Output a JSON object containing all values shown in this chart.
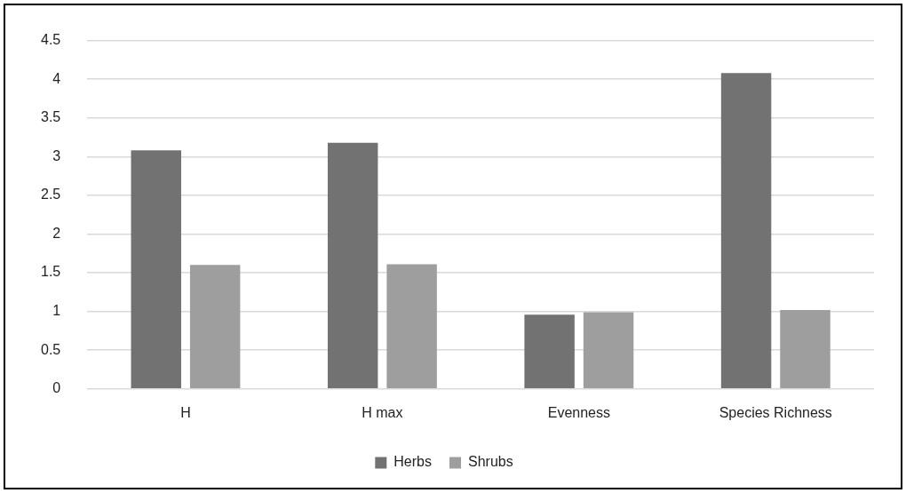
{
  "chart_data": {
    "type": "bar",
    "categories": [
      "H",
      "H max",
      "Evenness",
      "Species Richness"
    ],
    "series": [
      {
        "name": "Herbs",
        "color": "#727272",
        "values": [
          3.08,
          3.18,
          0.96,
          4.08
        ]
      },
      {
        "name": "Shrubs",
        "color": "#9e9e9e",
        "values": [
          1.6,
          1.61,
          0.99,
          1.02
        ]
      }
    ],
    "ylim": [
      0,
      4.5
    ],
    "yticks": [
      0,
      0.5,
      1,
      1.5,
      2,
      2.5,
      3,
      3.5,
      4,
      4.5
    ],
    "grid": "y",
    "legend": "bottom"
  }
}
